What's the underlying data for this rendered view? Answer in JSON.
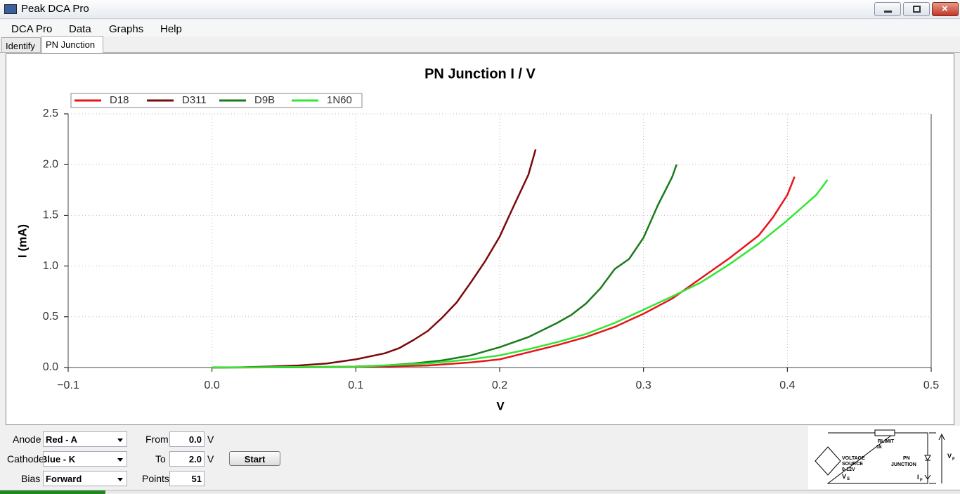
{
  "window": {
    "title": "Peak DCA Pro"
  },
  "menu": [
    "DCA Pro",
    "Data",
    "Graphs",
    "Help"
  ],
  "tabs": [
    "Identify",
    "PN Junction"
  ],
  "chart_data": {
    "type": "line",
    "title": "PN Junction I / V",
    "x_label": "V",
    "y_label": "I (mA)",
    "xlim": [
      -0.1,
      0.5
    ],
    "ylim": [
      0,
      2.5
    ],
    "xticks": [
      {
        "value": -0.1,
        "label": "−0.1"
      },
      {
        "value": 0,
        "label": "0.0"
      },
      0.1,
      0.2,
      0.3,
      0.4,
      0.5
    ],
    "yticks": [
      {
        "value": 0,
        "label": "0.0"
      },
      0.5,
      {
        "value": 1,
        "label": "1.0"
      },
      1.5,
      {
        "value": 2,
        "label": "2.0"
      },
      2.5
    ],
    "grid": true,
    "legend": "top-left",
    "series": [
      {
        "name": "D18",
        "color": "#e8141a",
        "x": [
          0,
          0.1,
          0.15,
          0.18,
          0.2,
          0.22,
          0.24,
          0.26,
          0.28,
          0.3,
          0.32,
          0.34,
          0.36,
          0.38,
          0.39,
          0.4,
          0.405
        ],
        "values": [
          0,
          0.005,
          0.02,
          0.05,
          0.08,
          0.15,
          0.22,
          0.3,
          0.4,
          0.53,
          0.68,
          0.88,
          1.08,
          1.3,
          1.48,
          1.7,
          1.88
        ]
      },
      {
        "name": "D311",
        "color": "#7a0a0a",
        "x": [
          0,
          0.02,
          0.04,
          0.06,
          0.08,
          0.1,
          0.12,
          0.13,
          0.14,
          0.15,
          0.16,
          0.17,
          0.18,
          0.19,
          0.2,
          0.21,
          0.22,
          0.225
        ],
        "values": [
          0,
          0.003,
          0.01,
          0.02,
          0.04,
          0.08,
          0.14,
          0.19,
          0.27,
          0.36,
          0.49,
          0.64,
          0.84,
          1.05,
          1.29,
          1.6,
          1.9,
          2.15
        ]
      },
      {
        "name": "D9B",
        "color": "#1b7a1b",
        "x": [
          0,
          0.05,
          0.1,
          0.12,
          0.14,
          0.16,
          0.18,
          0.2,
          0.22,
          0.24,
          0.25,
          0.26,
          0.27,
          0.28,
          0.29,
          0.3,
          0.31,
          0.32,
          0.323
        ],
        "values": [
          0,
          0.002,
          0.01,
          0.02,
          0.04,
          0.07,
          0.12,
          0.2,
          0.3,
          0.44,
          0.52,
          0.63,
          0.78,
          0.97,
          1.07,
          1.28,
          1.6,
          1.88,
          2.0
        ]
      },
      {
        "name": "1N60",
        "color": "#33e633",
        "x": [
          0,
          0.1,
          0.15,
          0.18,
          0.2,
          0.22,
          0.24,
          0.26,
          0.28,
          0.3,
          0.32,
          0.34,
          0.36,
          0.38,
          0.4,
          0.42,
          0.428
        ],
        "values": [
          0,
          0.008,
          0.04,
          0.08,
          0.12,
          0.18,
          0.25,
          0.33,
          0.44,
          0.57,
          0.7,
          0.84,
          1.02,
          1.22,
          1.45,
          1.7,
          1.85
        ]
      }
    ]
  },
  "controls": {
    "anode": {
      "label": "Anode",
      "value": "Red - A"
    },
    "cathode": {
      "label": "Cathode",
      "value": "Blue - K"
    },
    "bias": {
      "label": "Bias",
      "value": "Forward"
    },
    "from": {
      "label": "From",
      "value": "0.0",
      "unit": "V"
    },
    "to": {
      "label": "To",
      "value": "2.0",
      "unit": "V"
    },
    "points": {
      "label": "Points",
      "value": "51"
    },
    "start": "Start"
  },
  "schematic": {
    "rlimit": "RLIMIT",
    "r_value": "1k",
    "source": [
      "VOLTAGE",
      "SOURCE",
      "0-12V"
    ],
    "vs": {
      "main": "V",
      "sub": "S"
    },
    "junction": [
      "PN",
      "JUNCTION"
    ],
    "if": {
      "main": "I",
      "sub": "F"
    },
    "vf": {
      "main": "V",
      "sub": "F"
    }
  }
}
